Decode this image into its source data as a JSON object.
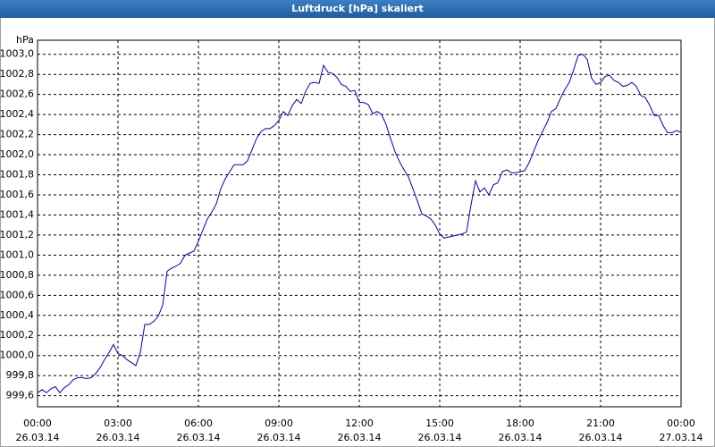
{
  "chart_data": {
    "type": "line",
    "title": "Luftdruck [hPa] skaliert",
    "y_unit": "hPa",
    "xlim": [
      0,
      1440
    ],
    "ylim": [
      999.49,
      1003.14
    ],
    "xticks": [
      {
        "value": 0,
        "label": "00:00"
      },
      {
        "value": 180,
        "label": "03:00"
      },
      {
        "value": 360,
        "label": "06:00"
      },
      {
        "value": 540,
        "label": "09:00"
      },
      {
        "value": 720,
        "label": "12:00"
      },
      {
        "value": 900,
        "label": "15:00"
      },
      {
        "value": 1080,
        "label": "18:00"
      },
      {
        "value": 1260,
        "label": "21:00"
      },
      {
        "value": 1440,
        "label": "00:00"
      }
    ],
    "xtick_dates": [
      "26.03.14",
      "26.03.14",
      "26.03.14",
      "26.03.14",
      "26.03.14",
      "26.03.14",
      "26.03.14",
      "26.03.14",
      "27.03.14"
    ],
    "yticks": [
      {
        "value": 999.6,
        "label": "999,6"
      },
      {
        "value": 999.8,
        "label": "999,8"
      },
      {
        "value": 1000.0,
        "label": "1000,0"
      },
      {
        "value": 1000.2,
        "label": "1000,2"
      },
      {
        "value": 1000.4,
        "label": "1000,4"
      },
      {
        "value": 1000.6,
        "label": "1000,6"
      },
      {
        "value": 1000.8,
        "label": "1000,8"
      },
      {
        "value": 1001.0,
        "label": "1001,0"
      },
      {
        "value": 1001.2,
        "label": "1001,2"
      },
      {
        "value": 1001.4,
        "label": "1001,4"
      },
      {
        "value": 1001.6,
        "label": "1001,6"
      },
      {
        "value": 1001.8,
        "label": "1001,8"
      },
      {
        "value": 1002.0,
        "label": "1002,0"
      },
      {
        "value": 1002.2,
        "label": "1002,2"
      },
      {
        "value": 1002.4,
        "label": "1002,4"
      },
      {
        "value": 1002.6,
        "label": "1002,6"
      },
      {
        "value": 1002.8,
        "label": "1002,8"
      },
      {
        "value": 1003.0,
        "label": "1003,0"
      }
    ],
    "grid": true,
    "x": [
      0,
      10,
      20,
      30,
      40,
      50,
      60,
      70,
      80,
      90,
      100,
      110,
      120,
      130,
      140,
      150,
      160,
      170,
      180,
      190,
      200,
      210,
      220,
      230,
      240,
      250,
      260,
      270,
      280,
      290,
      300,
      310,
      320,
      330,
      340,
      350,
      360,
      370,
      380,
      390,
      400,
      410,
      420,
      430,
      440,
      450,
      460,
      470,
      480,
      490,
      500,
      510,
      520,
      530,
      540,
      550,
      560,
      570,
      580,
      590,
      600,
      610,
      620,
      630,
      640,
      650,
      660,
      670,
      680,
      690,
      700,
      710,
      720,
      730,
      740,
      750,
      760,
      770,
      780,
      790,
      800,
      810,
      820,
      830,
      840,
      850,
      860,
      870,
      880,
      890,
      900,
      910,
      920,
      930,
      940,
      950,
      960,
      970,
      980,
      990,
      1000,
      1010,
      1020,
      1030,
      1040,
      1050,
      1060,
      1070,
      1080,
      1090,
      1100,
      1110,
      1120,
      1130,
      1140,
      1150,
      1160,
      1170,
      1180,
      1190,
      1200,
      1210,
      1220,
      1230,
      1240,
      1250,
      1260,
      1270,
      1280,
      1290,
      1300,
      1310,
      1320,
      1330,
      1340,
      1350,
      1360,
      1370,
      1380,
      1390,
      1400,
      1410,
      1420,
      1430,
      1440
    ],
    "series": [
      {
        "color": "#0000c0",
        "values": [
          999.63,
          999.66,
          999.63,
          999.67,
          999.69,
          999.63,
          999.68,
          999.71,
          999.76,
          999.78,
          999.78,
          999.77,
          999.78,
          999.82,
          999.88,
          999.96,
          1000.03,
          1000.11,
          1000.02,
          1000.0,
          999.96,
          999.93,
          999.9,
          1000.03,
          1000.31,
          1000.31,
          1000.34,
          1000.39,
          1000.5,
          1000.84,
          1000.87,
          1000.89,
          1000.92,
          1001.0,
          1001.02,
          1001.04,
          1001.14,
          1001.25,
          1001.36,
          1001.43,
          1001.51,
          1001.66,
          1001.76,
          1001.83,
          1001.9,
          1001.9,
          1001.9,
          1001.94,
          1002.05,
          1002.16,
          1002.23,
          1002.26,
          1002.26,
          1002.29,
          1002.34,
          1002.43,
          1002.39,
          1002.49,
          1002.55,
          1002.51,
          1002.63,
          1002.71,
          1002.72,
          1002.71,
          1002.89,
          1002.82,
          1002.81,
          1002.77,
          1002.7,
          1002.68,
          1002.63,
          1002.64,
          1002.52,
          1002.52,
          1002.5,
          1002.41,
          1002.43,
          1002.4,
          1002.3,
          1002.16,
          1002.03,
          1001.93,
          1001.85,
          1001.78,
          1001.66,
          1001.54,
          1001.41,
          1001.39,
          1001.36,
          1001.3,
          1001.21,
          1001.17,
          1001.18,
          1001.19,
          1001.2,
          1001.21,
          1001.23,
          1001.5,
          1001.74,
          1001.63,
          1001.67,
          1001.6,
          1001.7,
          1001.72,
          1001.83,
          1001.85,
          1001.82,
          1001.82,
          1001.83,
          1001.84,
          1001.92,
          1002.03,
          1002.14,
          1002.23,
          1002.32,
          1002.43,
          1002.46,
          1002.56,
          1002.65,
          1002.72,
          1002.85,
          1002.99,
          1003.0,
          1002.95,
          1002.76,
          1002.7,
          1002.72,
          1002.78,
          1002.79,
          1002.74,
          1002.72,
          1002.68,
          1002.69,
          1002.72,
          1002.68,
          1002.59,
          1002.57,
          1002.49,
          1002.39,
          1002.39,
          1002.29,
          1002.22,
          1002.22,
          1002.24,
          1002.22
        ]
      }
    ]
  }
}
